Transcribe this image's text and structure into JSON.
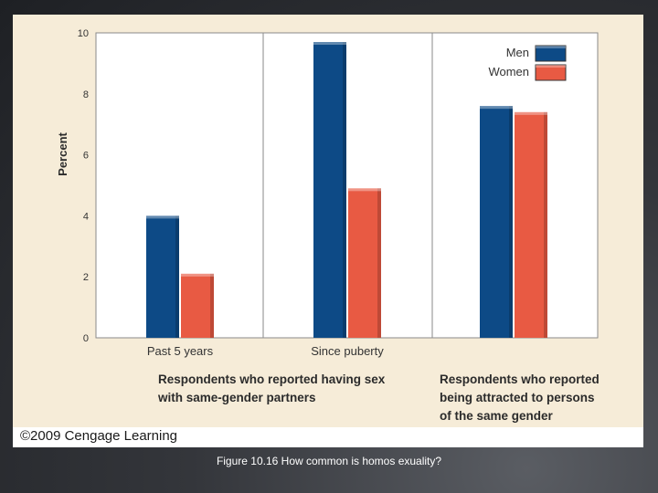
{
  "chart_data": {
    "type": "bar",
    "ylabel": "Percent",
    "ylim": [
      0,
      10
    ],
    "yticks": [
      0,
      2,
      4,
      6,
      8,
      10
    ],
    "categories": [
      "Past 5 years",
      "Since puberty",
      ""
    ],
    "category_groups": [
      {
        "label_lines": [
          "Respondents who reported having sex",
          "with same-gender partners"
        ],
        "categories": [
          0,
          1
        ]
      },
      {
        "label_lines": [
          "Respondents who reported",
          "being attracted to persons",
          "of the same gender"
        ],
        "categories": [
          2
        ]
      }
    ],
    "series": [
      {
        "name": "Men",
        "values": [
          4.0,
          9.7,
          7.6
        ]
      },
      {
        "name": "Women",
        "values": [
          2.1,
          4.9,
          7.4
        ]
      }
    ],
    "legend": "top-right",
    "grid": "vertical separators",
    "colors": {
      "Men": "#0d4a86",
      "Women": "#e85a43"
    }
  },
  "footer": {
    "copyright": "©2009 Cengage Learning",
    "caption": "Figure 10.16 How common is homos exuality?"
  }
}
